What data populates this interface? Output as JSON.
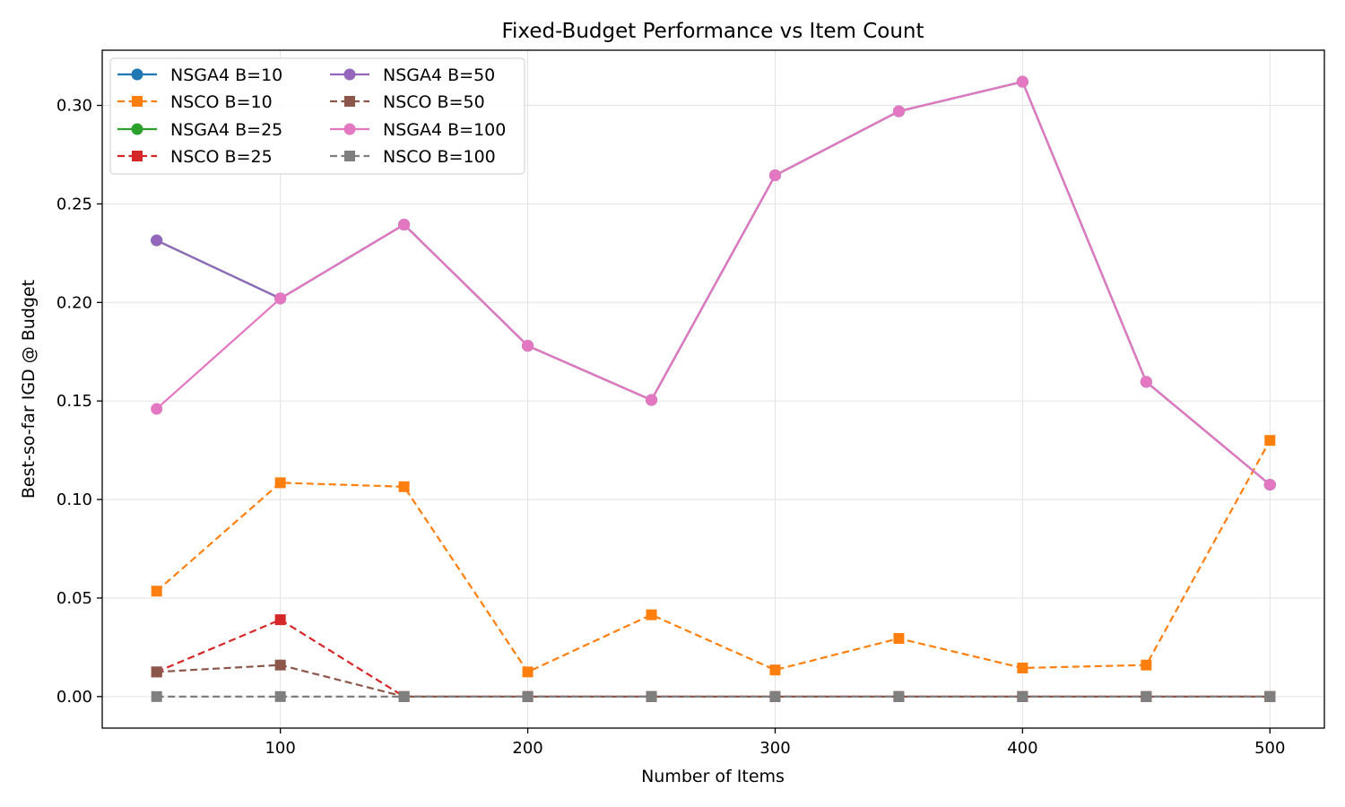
{
  "chart_data": {
    "type": "line",
    "title": "Fixed-Budget Performance vs Item Count",
    "xlabel": "Number of Items",
    "ylabel": "Best-so-far IGD @ Budget",
    "xlim": [
      28,
      522
    ],
    "ylim": [
      -0.016,
      0.328
    ],
    "x_ticks": [
      100,
      200,
      300,
      400,
      500
    ],
    "y_ticks": [
      0.0,
      0.05,
      0.1,
      0.15,
      0.2,
      0.25,
      0.3
    ],
    "x_tick_labels": [
      "100",
      "200",
      "300",
      "400",
      "500"
    ],
    "y_tick_labels": [
      "0.00",
      "0.05",
      "0.10",
      "0.15",
      "0.20",
      "0.25",
      "0.30"
    ],
    "grid": true,
    "legend_position": "top-left",
    "legend_columns": 2,
    "x": [
      50,
      100,
      150,
      200,
      250,
      300,
      350,
      400,
      450,
      500
    ],
    "series": [
      {
        "name": "NSGA4 B=10",
        "color": "#1f77b4",
        "line": "solid",
        "marker": "circle",
        "values": [
          0.2315,
          0.202,
          0.2395,
          0.178,
          0.1505,
          0.2645,
          0.297,
          0.312,
          0.1597,
          0.1075
        ]
      },
      {
        "name": "NSCO B=10",
        "color": "#ff7f0e",
        "line": "dashed",
        "marker": "square",
        "values": [
          0.0535,
          0.1085,
          0.1065,
          0.0125,
          0.0415,
          0.0135,
          0.0295,
          0.0145,
          0.016,
          0.13
        ]
      },
      {
        "name": "NSGA4 B=25",
        "color": "#2ca02c",
        "line": "solid",
        "marker": "circle",
        "values": [
          0.2315,
          0.202,
          0.2395,
          0.178,
          0.1505,
          0.2645,
          0.297,
          0.312,
          0.1597,
          0.1075
        ]
      },
      {
        "name": "NSCO B=25",
        "color": "#d62728",
        "line": "dashed",
        "marker": "square",
        "values": [
          0.0125,
          0.039,
          0.0,
          0.0,
          0.0,
          0.0,
          0.0,
          0.0,
          0.0,
          0.0
        ]
      },
      {
        "name": "NSGA4 B=50",
        "color": "#9467bd",
        "line": "solid",
        "marker": "circle",
        "values": [
          0.2315,
          0.202,
          0.2395,
          0.178,
          0.1505,
          0.2645,
          0.297,
          0.312,
          0.1597,
          0.1075
        ]
      },
      {
        "name": "NSCO B=50",
        "color": "#8c564b",
        "line": "dashed",
        "marker": "square",
        "values": [
          0.0125,
          0.016,
          0.0,
          0.0,
          0.0,
          0.0,
          0.0,
          0.0,
          0.0,
          0.0
        ]
      },
      {
        "name": "NSGA4 B=100",
        "color": "#e377c2",
        "line": "solid",
        "marker": "circle",
        "values": [
          0.146,
          0.202,
          0.2395,
          0.178,
          0.1505,
          0.2645,
          0.297,
          0.312,
          0.1597,
          0.1075
        ]
      },
      {
        "name": "NSCO B=100",
        "color": "#7f7f7f",
        "line": "dashed",
        "marker": "square",
        "values": [
          0.0,
          0.0,
          0.0,
          0.0,
          0.0,
          0.0,
          0.0,
          0.0,
          0.0,
          0.0
        ]
      }
    ]
  }
}
